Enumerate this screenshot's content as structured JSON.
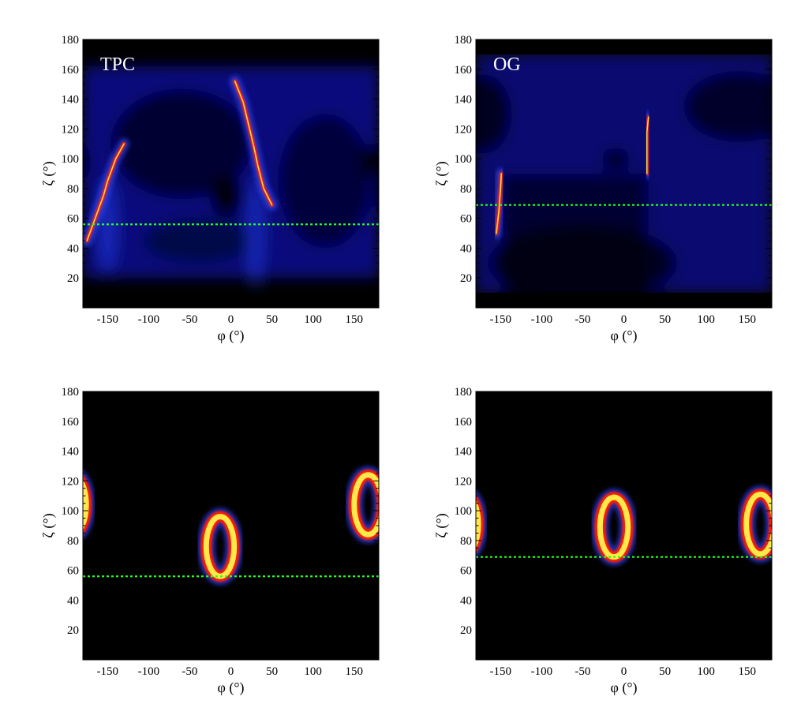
{
  "colors": {
    "background": "#000000",
    "glow_blue": "#1f3dff",
    "caustic_red": "#ff1a00",
    "caustic_yellow": "#ffe84a",
    "los_line": "#22ff22"
  },
  "chart_data": [
    {
      "type": "heatmap",
      "label": "TPC",
      "xlabel": "φ (°)",
      "ylabel": "ζ (°)",
      "xlim": [
        -180,
        180
      ],
      "ylim": [
        0,
        180
      ],
      "xticks": [
        -150,
        -100,
        -50,
        0,
        50,
        100,
        150
      ],
      "yticks": [
        20,
        40,
        60,
        80,
        100,
        120,
        140,
        160,
        180
      ],
      "line_of_sight_zeta": 56,
      "map": "emission",
      "caustics": [
        [
          [
            -175,
            45
          ],
          [
            -165,
            60
          ],
          [
            -155,
            75
          ],
          [
            -150,
            85
          ],
          [
            -140,
            100
          ],
          [
            -130,
            110
          ]
        ],
        [
          [
            5,
            152
          ],
          [
            15,
            138
          ],
          [
            22,
            122
          ],
          [
            28,
            108
          ],
          [
            33,
            95
          ],
          [
            40,
            80
          ],
          [
            50,
            69
          ]
        ]
      ]
    },
    {
      "type": "heatmap",
      "label": "OG",
      "xlabel": "φ (°)",
      "ylabel": "ζ (°)",
      "xlim": [
        -180,
        180
      ],
      "ylim": [
        0,
        180
      ],
      "xticks": [
        -150,
        -100,
        -50,
        0,
        50,
        100,
        150
      ],
      "yticks": [
        20,
        40,
        60,
        80,
        100,
        120,
        140,
        160,
        180
      ],
      "line_of_sight_zeta": 69,
      "map": "emission",
      "caustics": [
        [
          [
            -155,
            50
          ],
          [
            -152,
            65
          ],
          [
            -150,
            80
          ],
          [
            -149,
            90
          ]
        ],
        [
          [
            28,
            90
          ],
          [
            28,
            105
          ],
          [
            28,
            118
          ],
          [
            30,
            128
          ]
        ]
      ]
    },
    {
      "type": "heatmap",
      "label": "",
      "xlabel": "φ (°)",
      "ylabel": "ζ (°)",
      "xlim": [
        -180,
        180
      ],
      "ylim": [
        0,
        180
      ],
      "xticks": [
        -150,
        -100,
        -50,
        0,
        50,
        100,
        150
      ],
      "yticks": [
        20,
        40,
        60,
        80,
        100,
        120,
        140,
        160,
        180
      ],
      "line_of_sight_zeta": 56,
      "map": "rings",
      "rings": [
        {
          "cx": -13,
          "cy": 76,
          "rx": 17,
          "ry": 20
        },
        {
          "cx": 167,
          "cy": 104,
          "rx": 17,
          "ry": 20
        },
        {
          "cx": -193,
          "cy": 104,
          "rx": 17,
          "ry": 20
        }
      ]
    },
    {
      "type": "heatmap",
      "label": "",
      "xlabel": "φ (°)",
      "ylabel": "ζ (°)",
      "xlim": [
        -180,
        180
      ],
      "ylim": [
        0,
        180
      ],
      "xticks": [
        -150,
        -100,
        -50,
        0,
        50,
        100,
        150
      ],
      "yticks": [
        20,
        40,
        60,
        80,
        100,
        120,
        140,
        160,
        180
      ],
      "line_of_sight_zeta": 69,
      "map": "rings",
      "rings": [
        {
          "cx": -12,
          "cy": 89,
          "rx": 17,
          "ry": 20
        },
        {
          "cx": 166,
          "cy": 91,
          "rx": 17,
          "ry": 20
        },
        {
          "cx": -194,
          "cy": 91,
          "rx": 17,
          "ry": 20
        }
      ]
    }
  ]
}
